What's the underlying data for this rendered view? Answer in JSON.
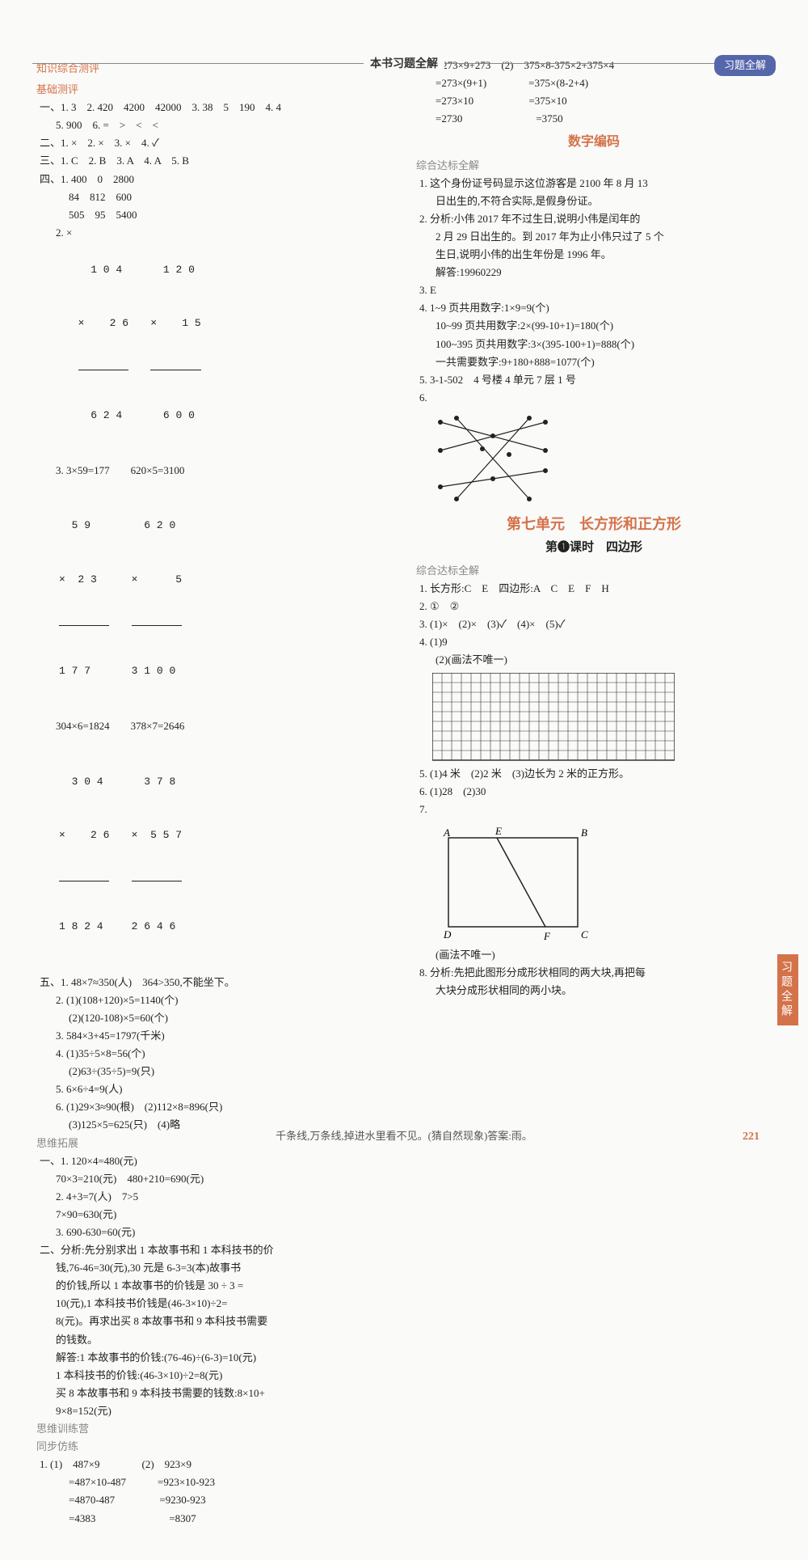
{
  "header": {
    "title": "本书习题全解",
    "badge": "习题全解"
  },
  "sideTab": "习题全解",
  "footer": "千条线,万条线,掉进水里看不见。(猜自然现象)答案:雨。",
  "pageNum": "221",
  "left": {
    "sec1": "知识综合测评",
    "sec2": "基础测评",
    "l1": "一、1. 3　2. 420　4200　42000　3. 38　5　190　4. 4",
    "l1b": "5. 900　6. =　>　<　<",
    "l2": "二、1. ×　2. ×　3. ×　4. ✓",
    "l3": "三、1. C　2. B　3. A　4. A　5. B",
    "l4": "四、1. 400　0　2800",
    "l4a": "84　812　600",
    "l4b": "505　95　5400",
    "l4c": "2. ×",
    "vc1": {
      "a": "  1 0 4",
      "b": "×    2 6",
      "c": "  6 2 4"
    },
    "vc2": {
      "a": "  1 2 0",
      "b": "×    1 5",
      "c": "  6 0 0"
    },
    "l4d": "3. 3×59=177　　620×5=3100",
    "vc3": {
      "a": "  5 9",
      "b": "×  2 3",
      "c": "1 7 7"
    },
    "vc4": {
      "a": "  6 2 0",
      "b": "×      5",
      "c": "3 1 0 0"
    },
    "l4e": "304×6=1824　　378×7=2646",
    "vc5": {
      "a": "  3 0 4",
      "b": "×    2 6",
      "c": "1 8 2 4"
    },
    "vc6": {
      "a": "  3 7 8",
      "b": "×  5 5 7",
      "c": "2 6 4 6"
    },
    "l5": "五、1. 48×7≈350(人)　364>350,不能坐下。",
    "l5a": "2. (1)(108+120)×5=1140(个)",
    "l5b": "(2)(120-108)×5=60(个)",
    "l5c": "3. 584×3+45=1797(千米)",
    "l5d": "4. (1)35÷5×8=56(个)",
    "l5e": "(2)63÷(35÷5)=9(只)",
    "l5f": "5. 6×6÷4=9(人)",
    "l5g": "6. (1)29×3≈90(根)　(2)112×8=896(只)",
    "l5h": "(3)125×5=625(只)　(4)略",
    "sec3": "思维拓展",
    "l6": "一、1. 120×4=480(元)",
    "l6a": "70×3=210(元)　480+210=690(元)",
    "l6b": "2. 4+3=7(人)　7>5",
    "l6c": "7×90=630(元)",
    "l6d": "3. 690-630=60(元)",
    "l7": "二、分析:先分别求出 1 本故事书和 1 本科技书的价",
    "l7a": "钱,76-46=30(元),30 元是 6-3=3(本)故事书",
    "l7b": "的价钱,所以 1 本故事书的价钱是 30 ÷ 3 =",
    "l7c": "10(元),1 本科技书价钱是(46-3×10)÷2=",
    "l7d": "8(元)。再求出买 8 本故事书和 9 本科技书需要",
    "l7e": "的钱数。",
    "l7f": "解答:1 本故事书的价钱:(76-46)÷(6-3)=10(元)",
    "l7g": "1 本科技书的价钱:(46-3×10)÷2=8(元)",
    "l7h": "买 8 本故事书和 9 本科技书需要的钱数:8×10+",
    "l7i": "9×8=152(元)",
    "sec4": "思维训练营",
    "sec5": "同步仿练",
    "l8": "1. (1)　487×9　　　　(2)　923×9",
    "l8a": "=487×10-487　　　=923×10-923",
    "l8b": "=4870-487　　　　 =9230-923",
    "l8c": "=4383　　　　　　　=8307"
  },
  "right": {
    "r1": "2. (1)273×9+273　(2)　375×8-375×2+375×4",
    "r1a": "=273×(9+1)　　　　=375×(8-2+4)",
    "r1b": "=273×10　　　　　 =375×10",
    "r1c": "=2730　　　　　　　=3750",
    "title1": "数字编码",
    "sec1": "综合达标全解",
    "r2": "1. 这个身份证号码显示这位游客是 2100 年 8 月 13",
    "r2a": "日出生的,不符合实际,是假身份证。",
    "r3": "2. 分析:小伟 2017 年不过生日,说明小伟是闰年的",
    "r3a": "2 月 29 日出生的。到 2017 年为止小伟只过了 5 个",
    "r3b": "生日,说明小伟的出生年份是 1996 年。",
    "r3c": "解答:19960229",
    "r4": "3. E",
    "r5": "4. 1~9 页共用数字:1×9=9(个)",
    "r5a": "10~99 页共用数字:2×(99-10+1)=180(个)",
    "r5b": "100~395 页共用数字:3×(395-100+1)=888(个)",
    "r5c": "一共需要数字:9+180+888=1077(个)",
    "r6": "5. 3-1-502　4 号楼 4 单元 7 层 1 号",
    "r7": "6.",
    "unitTitle": "第七单元　长方形和正方形",
    "subTitle": "第❶课时　四边形",
    "sec2": "综合达标全解",
    "r8": "1. 长方形:C　E　四边形:A　C　E　F　H",
    "r9": "2. ①　②",
    "r10": "3. (1)×　(2)×　(3)✓　(4)×　(5)✓",
    "r11": "4. (1)9",
    "r11a": "(2)(画法不唯一)",
    "r12": "5. (1)4 米　(2)2 米　(3)边长为 2 米的正方形。",
    "r13": "6. (1)28　(2)30",
    "r14": "7.",
    "r14a": "(画法不唯一)",
    "r15": "8. 分析:先把此图形分成形状相同的两大块,再把每",
    "r15a": "大块分成形状相同的两小块。",
    "labels": {
      "A": "A",
      "B": "B",
      "C": "C",
      "D": "D",
      "E": "E",
      "F": "F"
    }
  },
  "colors": {
    "accent": "#d4724a",
    "badge": "#5566aa",
    "gridLine": "#333",
    "diagramLine": "#222"
  }
}
